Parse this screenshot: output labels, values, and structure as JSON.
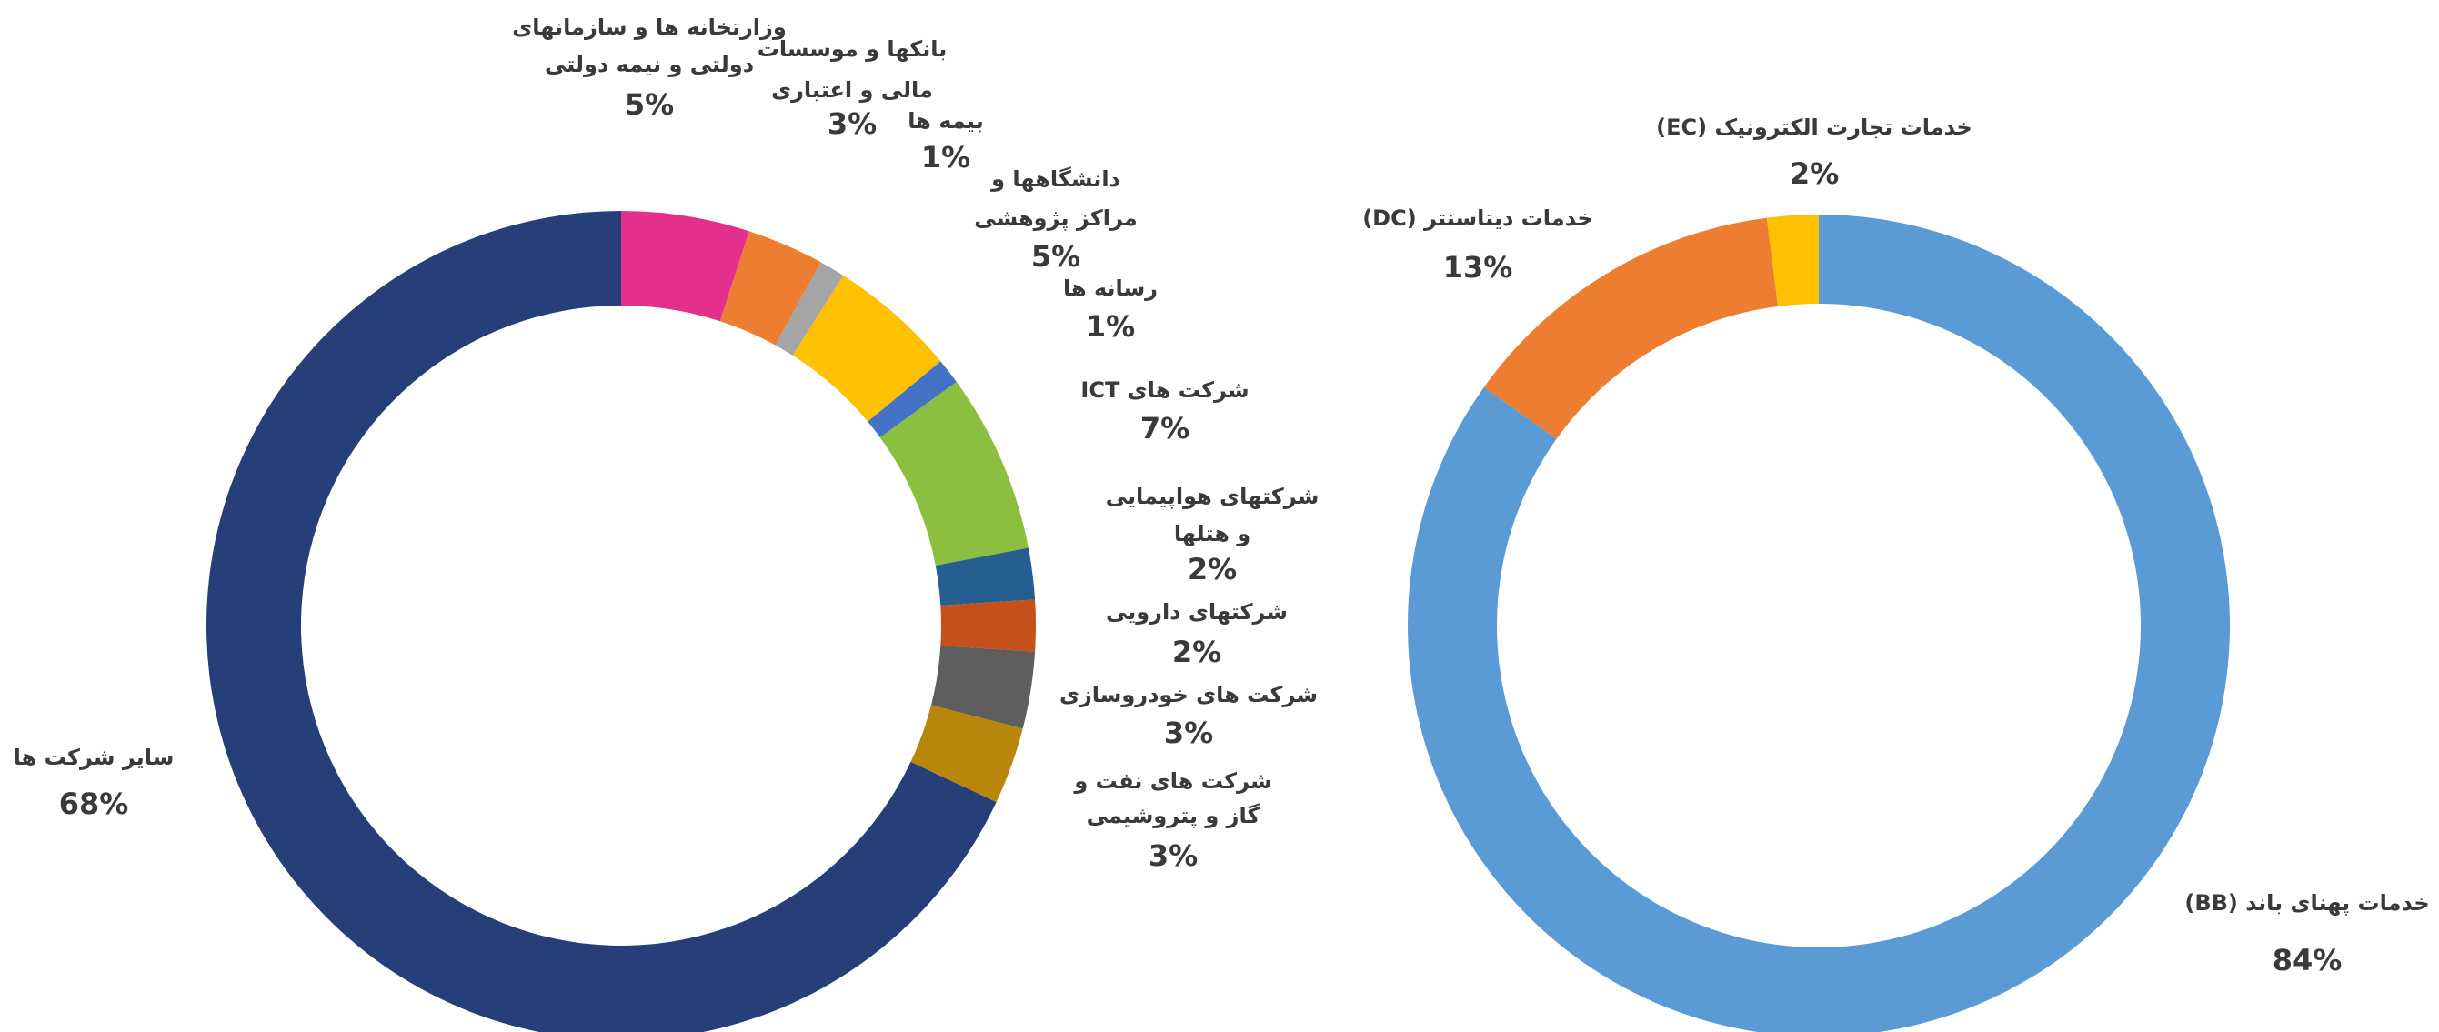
{
  "chart_data": [
    {
      "type": "donut",
      "categories": [
        [
          "وزارتخانه ها و سازمانهای",
          "دولتی و نیمه دولتی"
        ],
        [
          "بانکها و موسسات",
          "مالی و اعتباری"
        ],
        [
          "بیمه ها"
        ],
        [
          "دانشگاهها و",
          "مراکز پژوهشی"
        ],
        [
          "رسانه ها"
        ],
        [
          "شرکت های ICT"
        ],
        [
          "شرکتهای هواپیمایی",
          "و هتلها"
        ],
        [
          "شرکتهای دارویی"
        ],
        [
          "شرکت های خودروسازی"
        ],
        [
          "شرکت های نفت و",
          "گاز و پتروشیمی"
        ],
        [
          "سایر شرکت ها"
        ]
      ],
      "values": [
        5,
        3,
        1,
        5,
        1,
        7,
        2,
        2,
        3,
        3,
        68
      ],
      "value_labels": [
        "5%",
        "3%",
        "1%",
        "5%",
        "1%",
        "7%",
        "2%",
        "2%",
        "3%",
        "3%",
        "68%"
      ],
      "colors": [
        "#e5308b",
        "#ed7d31",
        "#a5a5a5",
        "#ffc000",
        "#4472c4",
        "#8cbf3f",
        "#255e91",
        "#c4501a",
        "#5e5e5e",
        "#b8860b",
        "#263f78"
      ]
    },
    {
      "type": "donut",
      "categories": [
        [
          "خدمات پهنای باند (BB)"
        ],
        [
          "خدمات دیتاسنتر (DC)"
        ],
        [
          "خدمات تجارت الکترونیک (EC)"
        ]
      ],
      "values": [
        84,
        13,
        2
      ],
      "value_labels": [
        "84%",
        "13%",
        "2%"
      ],
      "colors": [
        "#5b9bd5",
        "#ed7d31",
        "#ffc000"
      ]
    }
  ]
}
